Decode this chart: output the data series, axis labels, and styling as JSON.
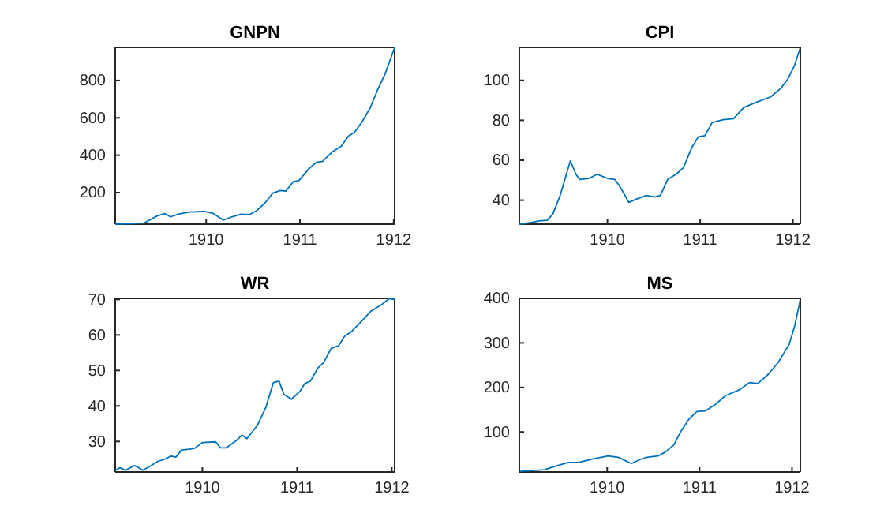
{
  "chart_data": [
    {
      "type": "line",
      "title": "GNPN",
      "xlim": [
        1909.03,
        1912.01
      ],
      "xticks": [
        1910,
        1911,
        1912
      ],
      "ylim": [
        31,
        977
      ],
      "yticks": [
        200,
        400,
        600,
        800
      ],
      "color": "#0072bd",
      "x": [
        1909.03,
        1909.34,
        1909.48,
        1909.56,
        1909.62,
        1909.7,
        1909.82,
        1909.98,
        1910.07,
        1910.18,
        1910.26,
        1910.37,
        1910.46,
        1910.54,
        1910.63,
        1910.71,
        1910.79,
        1910.85,
        1910.93,
        1910.99,
        1911.1,
        1911.18,
        1911.24,
        1911.35,
        1911.44,
        1911.52,
        1911.58,
        1911.66,
        1911.75,
        1911.83,
        1911.91,
        1912.01
      ],
      "values": [
        31,
        37,
        76,
        87,
        70,
        84,
        96,
        99,
        90,
        53,
        67,
        84,
        82,
        104,
        146,
        197,
        211,
        208,
        259,
        265,
        330,
        363,
        366,
        420,
        448,
        504,
        521,
        577,
        654,
        752,
        837,
        977
      ]
    },
    {
      "type": "line",
      "title": "CPI",
      "xlim": [
        1909.05,
        1912.08
      ],
      "xticks": [
        1910,
        1911,
        1912
      ],
      "ylim": [
        28,
        116.5
      ],
      "yticks": [
        40,
        60,
        80,
        100
      ],
      "color": "#0072bd",
      "x": [
        1909.05,
        1909.18,
        1909.26,
        1909.35,
        1909.41,
        1909.49,
        1909.6,
        1909.66,
        1909.7,
        1909.8,
        1909.89,
        1910,
        1910.08,
        1910.14,
        1910.23,
        1910.31,
        1910.42,
        1910.51,
        1910.57,
        1910.65,
        1910.74,
        1910.82,
        1910.91,
        1910.98,
        1911.05,
        1911.13,
        1911.25,
        1911.36,
        1911.47,
        1911.61,
        1911.76,
        1911.87,
        1911.95,
        1912.02,
        1912.08
      ],
      "values": [
        28,
        28.8,
        29.6,
        29.9,
        33,
        42.4,
        59.7,
        53,
        50.4,
        50.9,
        53,
        50.9,
        50.4,
        46.4,
        38.9,
        40.5,
        42.4,
        41.6,
        42.4,
        50.4,
        53,
        56.3,
        66.4,
        71.7,
        72.3,
        78.9,
        80.3,
        80.8,
        86.4,
        89.1,
        91.7,
        96,
        101,
        107.7,
        116.5
      ]
    },
    {
      "type": "line",
      "title": "WR",
      "xlim": [
        1909.08,
        1912.03
      ],
      "xticks": [
        1910,
        1911,
        1912
      ],
      "ylim": [
        21.4,
        70.3
      ],
      "yticks": [
        30,
        40,
        50,
        60,
        70
      ],
      "color": "#0072bd",
      "x": [
        1909.08,
        1909.13,
        1909.19,
        1909.28,
        1909.33,
        1909.37,
        1909.44,
        1909.53,
        1909.61,
        1909.67,
        1909.72,
        1909.78,
        1909.86,
        1909.92,
        1910,
        1910.14,
        1910.19,
        1910.25,
        1910.36,
        1910.42,
        1910.47,
        1910.58,
        1910.67,
        1910.75,
        1910.81,
        1910.86,
        1910.94,
        1911.03,
        1911.08,
        1911.14,
        1911.22,
        1911.28,
        1911.36,
        1911.44,
        1911.5,
        1911.58,
        1911.69,
        1911.78,
        1911.89,
        1911.97,
        1912.03
      ],
      "values": [
        21.9,
        22.6,
        21.9,
        23.2,
        22.6,
        21.9,
        22.9,
        24.4,
        25.1,
        25.9,
        25.6,
        27.6,
        27.8,
        28.1,
        29.7,
        29.9,
        28.2,
        28.2,
        30.3,
        31.8,
        30.8,
        34.5,
        39.6,
        46.6,
        47,
        43.3,
        41.9,
        44.1,
        46.3,
        47,
        50.7,
        52.2,
        56.2,
        57,
        59.6,
        61.1,
        64.1,
        66.7,
        68.5,
        70.2,
        70
      ]
    },
    {
      "type": "line",
      "title": "MS",
      "xlim": [
        1909.05,
        1912.09
      ],
      "xticks": [
        1910,
        1911,
        1912
      ],
      "ylim": [
        10,
        400
      ],
      "yticks": [
        100,
        200,
        300,
        400
      ],
      "color": "#0072bd",
      "x": [
        1909.06,
        1909.32,
        1909.44,
        1909.58,
        1909.69,
        1909.86,
        1910.01,
        1910.12,
        1910.26,
        1910.35,
        1910.43,
        1910.55,
        1910.63,
        1910.72,
        1910.8,
        1910.89,
        1910.97,
        1911.06,
        1911.17,
        1911.28,
        1911.43,
        1911.54,
        1911.63,
        1911.74,
        1911.85,
        1911.97,
        1912.03,
        1912.09
      ],
      "values": [
        11.4,
        15,
        23,
        31.5,
        31.5,
        40,
        46,
        43,
        29,
        37.5,
        43,
        46,
        55,
        70.5,
        102,
        130,
        146,
        147,
        161.5,
        181.5,
        194.5,
        211,
        208.7,
        229,
        256,
        297,
        339,
        397.6
      ]
    }
  ]
}
